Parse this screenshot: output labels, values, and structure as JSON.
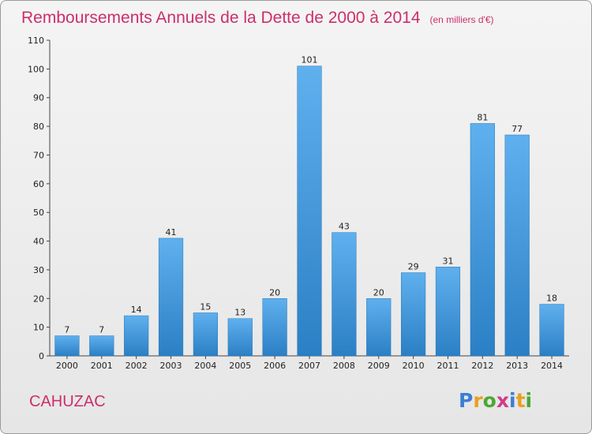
{
  "chart_data": {
    "type": "bar",
    "title": "Remboursements Annuels de la Dette de 2000 à 2014",
    "subtitle": "(en milliers d'€)",
    "categories": [
      "2000",
      "2001",
      "2002",
      "2003",
      "2004",
      "2005",
      "2006",
      "2007",
      "2008",
      "2009",
      "2010",
      "2011",
      "2012",
      "2013",
      "2014"
    ],
    "values": [
      7,
      7,
      14,
      41,
      15,
      13,
      20,
      101,
      43,
      20,
      29,
      31,
      81,
      77,
      18
    ],
    "ylim": [
      0,
      110
    ],
    "yticks": [
      0,
      10,
      20,
      30,
      40,
      50,
      60,
      70,
      80,
      90,
      100,
      110
    ],
    "grid": false,
    "bar_color": "#4a9fe0"
  },
  "footer": {
    "commune": "CAHUZAC",
    "brand_letters": [
      "P",
      "r",
      "o",
      "x",
      "i",
      "t",
      "i"
    ],
    "brand_colors": [
      "#3a7fd5",
      "#e8a020",
      "#4aa832",
      "#d23a8a",
      "#3a7fd5",
      "#e8a020",
      "#4aa832"
    ]
  }
}
